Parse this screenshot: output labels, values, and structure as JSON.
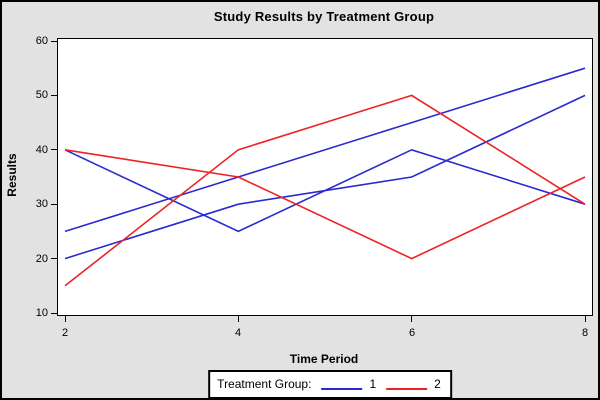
{
  "chart_data": {
    "type": "line",
    "title": "Study Results by Treatment Group",
    "xlabel": "Time Period",
    "ylabel": "Results",
    "xlim": [
      2,
      8
    ],
    "ylim": [
      10,
      60
    ],
    "xticks": [
      2,
      4,
      6,
      8
    ],
    "yticks": [
      10,
      20,
      30,
      40,
      50,
      60
    ],
    "grid": false,
    "plot_background": "#FFFFFF",
    "window_background": "#E2E2E2",
    "x": [
      2,
      4,
      6,
      8
    ],
    "series": [
      {
        "group": "1",
        "color": "#2A2AD0",
        "values": [
          40,
          25,
          40,
          30
        ]
      },
      {
        "group": "1",
        "color": "#2A2AD0",
        "values": [
          25,
          35,
          45,
          55
        ]
      },
      {
        "group": "1",
        "color": "#2A2AD0",
        "values": [
          20,
          30,
          35,
          50
        ]
      },
      {
        "group": "2",
        "color": "#EE2222",
        "values": [
          40,
          35,
          20,
          35
        ]
      },
      {
        "group": "2",
        "color": "#EE2222",
        "values": [
          15,
          40,
          50,
          30
        ]
      }
    ],
    "legend": {
      "title": "Treatment Group:",
      "position": "bottom",
      "entries": [
        {
          "label": "1",
          "color": "#2A2AD0"
        },
        {
          "label": "2",
          "color": "#EE2222"
        }
      ]
    }
  }
}
